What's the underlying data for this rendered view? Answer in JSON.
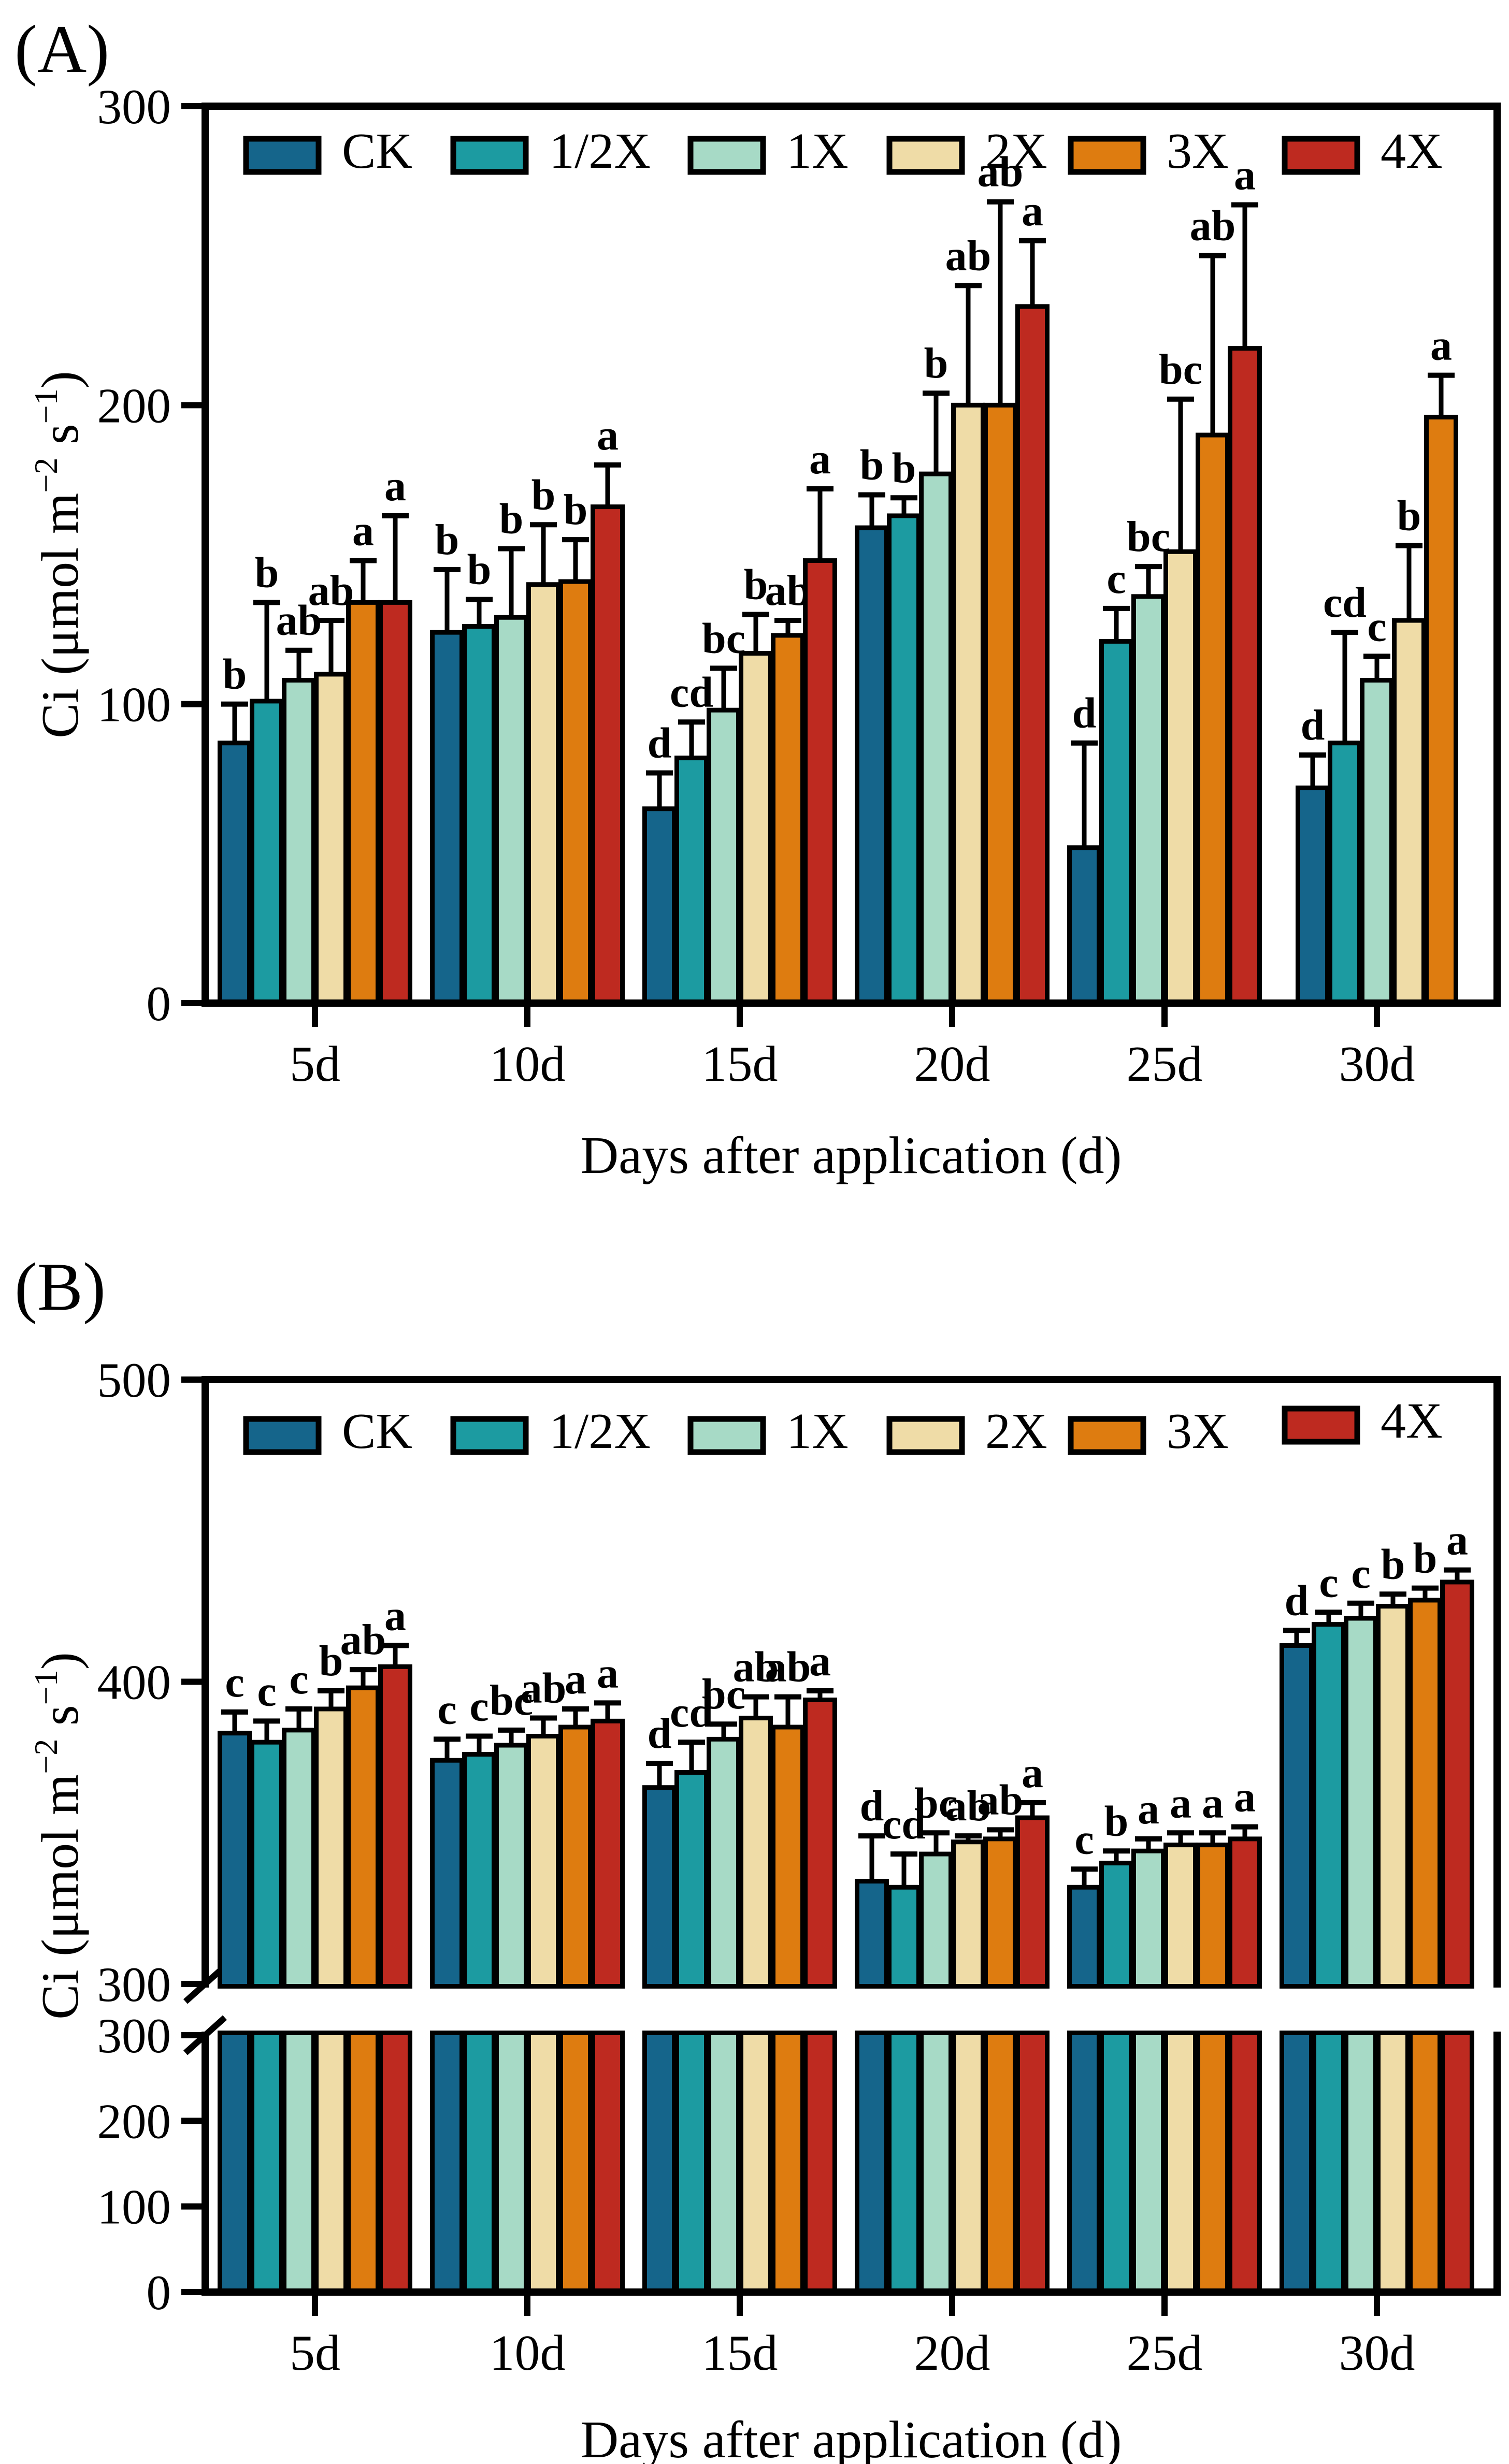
{
  "figure": {
    "panel_a_label": "(A)",
    "panel_b_label": "(B)"
  },
  "axis": {
    "x_title": "Days after application (d)",
    "y_title": "Ci (μmol m⁻² s⁻¹)",
    "y_title_parts": {
      "pre": "Ci (μmol m",
      "sup1": "−2",
      "mid": " s",
      "sup2": "−1",
      "post": ")"
    }
  },
  "legend": {
    "entries": [
      "CK",
      "1/2X",
      "1X",
      "2X",
      "3X",
      "4X"
    ],
    "colors": [
      "#15658B",
      "#1C9BA1",
      "#A7DAC6",
      "#EFDCA7",
      "#DE7C10",
      "#BE2A20"
    ]
  },
  "chart_data": [
    {
      "panel": "A",
      "panel_label": "(A)",
      "type": "bar",
      "title": "",
      "xlabel": "Days after application (d)",
      "ylabel": "Ci (μmol m⁻² s⁻¹)",
      "categories": [
        "5d",
        "10d",
        "15d",
        "20d",
        "25d",
        "30d"
      ],
      "ylim": [
        0,
        300
      ],
      "yticks": [
        0,
        100,
        200,
        300
      ],
      "grid": false,
      "legend_position": "top-inside",
      "series": [
        {
          "name": "CK",
          "color": "#15658B",
          "values": [
            87,
            124,
            65,
            159,
            52,
            72
          ],
          "err_up": [
            13,
            21,
            12,
            11,
            35,
            11
          ],
          "letters": [
            "b",
            "b",
            "d",
            "b",
            "d",
            "d"
          ]
        },
        {
          "name": "1/2X",
          "color": "#1C9BA1",
          "values": [
            101,
            126,
            82,
            163,
            121,
            87
          ],
          "err_up": [
            33,
            9,
            12,
            6,
            11,
            37
          ],
          "letters": [
            "b",
            "b",
            "cd",
            "b",
            "c",
            "cd"
          ]
        },
        {
          "name": "1X",
          "color": "#A7DAC6",
          "values": [
            108,
            129,
            98,
            177,
            136,
            108
          ],
          "err_up": [
            10,
            23,
            14,
            27,
            10,
            8
          ],
          "letters": [
            "ab",
            "b",
            "bc",
            "b",
            "bc",
            "c"
          ]
        },
        {
          "name": "2X",
          "color": "#EFDCA7",
          "values": [
            110,
            140,
            117,
            200,
            151,
            128
          ],
          "err_up": [
            18,
            20,
            13,
            40,
            51,
            25
          ],
          "letters": [
            "ab",
            "b",
            "b",
            "ab",
            "bc",
            "b"
          ]
        },
        {
          "name": "3X",
          "color": "#DE7C10",
          "values": [
            134,
            141,
            123,
            200,
            190,
            196
          ],
          "err_up": [
            14,
            14,
            5,
            68,
            60,
            14
          ],
          "letters": [
            "a",
            "b",
            "ab",
            "ab",
            "ab",
            "a"
          ]
        },
        {
          "name": "4X",
          "color": "#BE2A20",
          "values": [
            134,
            166,
            148,
            233,
            219,
            null
          ],
          "err_up": [
            29,
            14,
            24,
            22,
            48,
            null
          ],
          "letters": [
            "a",
            "a",
            "a",
            "a",
            "a",
            null
          ]
        }
      ]
    },
    {
      "panel": "B",
      "panel_label": "(B)",
      "type": "bar",
      "title": "",
      "xlabel": "Days after application (d)",
      "ylabel": "Ci (μmol m⁻² s⁻¹)",
      "categories": [
        "5d",
        "10d",
        "15d",
        "20d",
        "25d",
        "30d"
      ],
      "broken_axis": true,
      "upper_ylim": [
        300,
        500
      ],
      "upper_yticks": [
        300,
        400,
        500
      ],
      "lower_ylim": [
        0,
        300
      ],
      "lower_yticks": [
        0,
        100,
        200,
        300
      ],
      "grid": false,
      "legend_position": "top-inside",
      "series": [
        {
          "name": "CK",
          "color": "#15658B",
          "values": [
            383,
            374,
            365,
            334,
            332,
            412
          ],
          "err_up": [
            7,
            7,
            8,
            15,
            6,
            5
          ],
          "letters": [
            "c",
            "c",
            "d",
            "d",
            "c",
            "d"
          ]
        },
        {
          "name": "1/2X",
          "color": "#1C9BA1",
          "values": [
            380,
            376,
            370,
            332,
            340,
            419
          ],
          "err_up": [
            7,
            6,
            10,
            11,
            4,
            4
          ],
          "letters": [
            "c",
            "c",
            "cd",
            "cd",
            "b",
            "c"
          ]
        },
        {
          "name": "1X",
          "color": "#A7DAC6",
          "values": [
            384,
            379,
            381,
            343,
            344,
            421
          ],
          "err_up": [
            7,
            5,
            5,
            7,
            4,
            5
          ],
          "letters": [
            "c",
            "bc",
            "bc",
            "bc",
            "a",
            "c"
          ]
        },
        {
          "name": "2X",
          "color": "#EFDCA7",
          "values": [
            391,
            382,
            388,
            347,
            346,
            425
          ],
          "err_up": [
            6,
            6,
            7,
            2,
            4,
            4
          ],
          "letters": [
            "b",
            "ab",
            "ab",
            "ab",
            "a",
            "b"
          ]
        },
        {
          "name": "3X",
          "color": "#DE7C10",
          "values": [
            398,
            385,
            385,
            348,
            346,
            427
          ],
          "err_up": [
            6,
            6,
            10,
            3,
            4,
            4
          ],
          "letters": [
            "ab",
            "a",
            "ab",
            "ab",
            "a",
            "b"
          ]
        },
        {
          "name": "4X",
          "color": "#BE2A20",
          "values": [
            405,
            387,
            394,
            355,
            348,
            433
          ],
          "err_up": [
            7,
            6,
            3,
            5,
            4,
            4
          ],
          "letters": [
            "a",
            "a",
            "a",
            "a",
            "a",
            "a"
          ]
        }
      ]
    }
  ]
}
